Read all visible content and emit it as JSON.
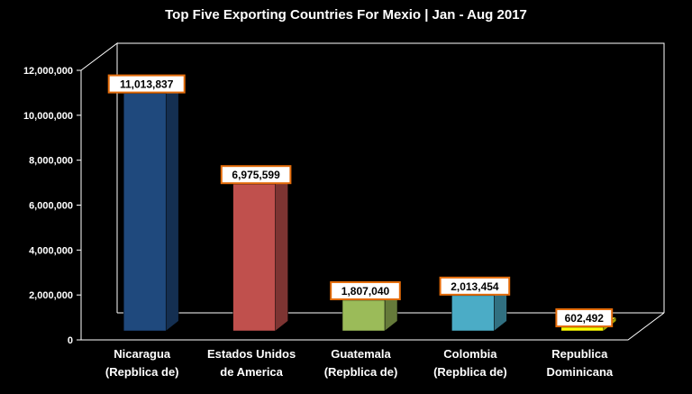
{
  "chart_data": {
    "type": "bar",
    "title": "Top Five Exporting Countries  For Mexio | Jan - Aug 2017",
    "xlabel": "",
    "ylabel": "",
    "categories": [
      [
        "Nicaragua",
        "(Repblica de)"
      ],
      [
        "Estados  Unidos",
        "de America"
      ],
      [
        "Guatemala",
        "(Repblica de)"
      ],
      [
        "Colombia",
        "(Repblica de)"
      ],
      [
        "Republica",
        "Dominicana"
      ]
    ],
    "values": [
      11013837,
      6975599,
      1807040,
      2013454,
      602492
    ],
    "data_labels": [
      "11,013,837",
      "6,975,599",
      "1,807,040",
      "2,013,454",
      "602,492"
    ],
    "ylim": [
      0,
      12000000
    ],
    "yticks": [
      0,
      2000000,
      4000000,
      6000000,
      8000000,
      10000000,
      12000000
    ],
    "ytick_labels": [
      "0",
      "2,000,000",
      "4,000,000",
      "6,000,000",
      "8,000,000",
      "10,000,000",
      "12,000,000"
    ],
    "grid": false,
    "legend": "none",
    "style": "3d",
    "colors": [
      "#1F497D",
      "#C0504D",
      "#9BBB59",
      "#4BACC6",
      "#FFFF00"
    ],
    "background": "#000000",
    "label_border_color": "#E46C0A"
  }
}
